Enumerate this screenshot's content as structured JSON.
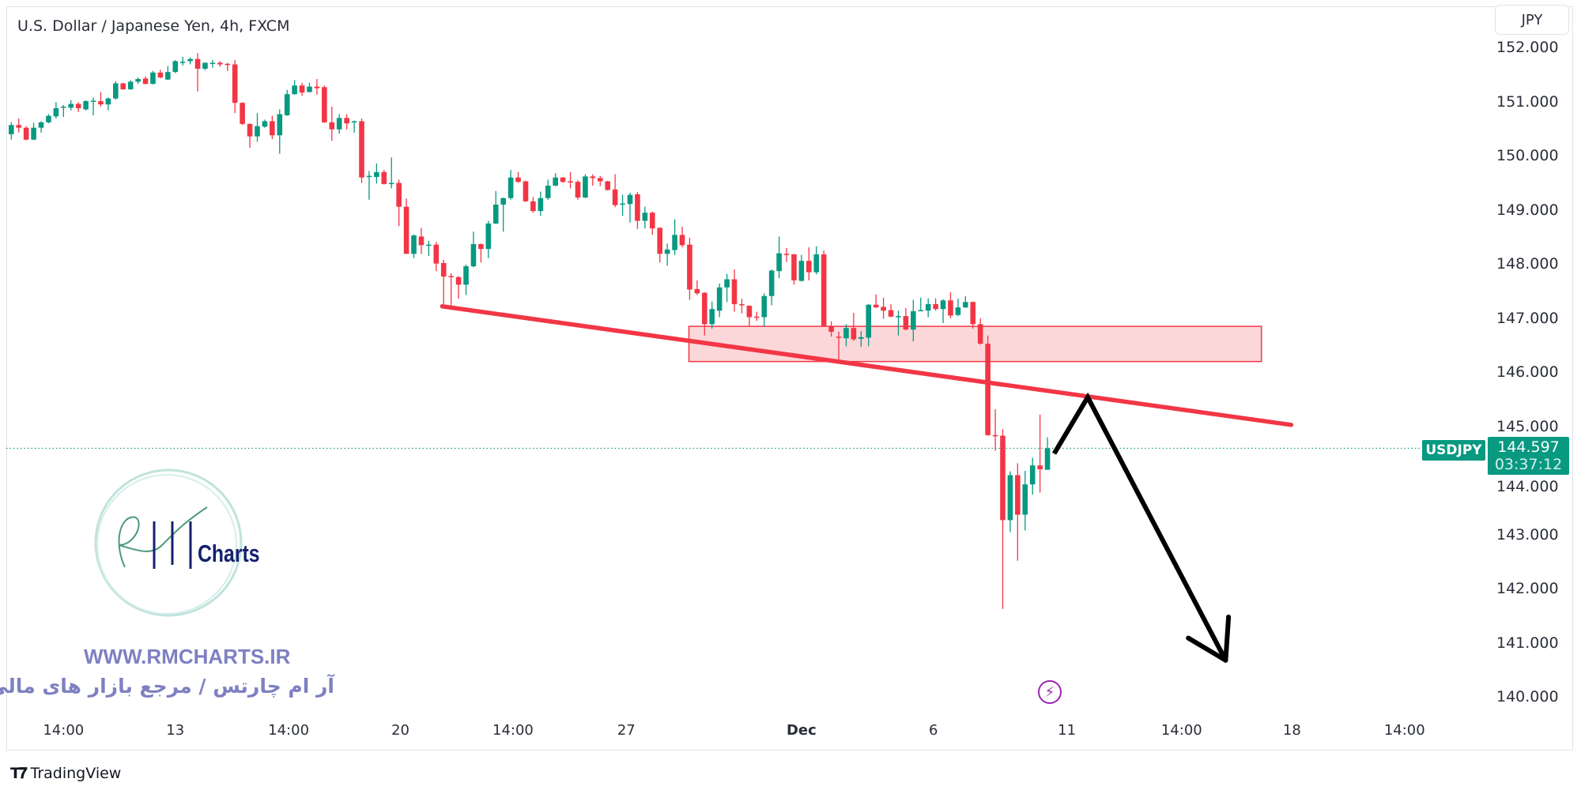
{
  "header": {
    "title": "U.S. Dollar / Japanese Yen, 4h, FXCM",
    "currency_button": "JPY"
  },
  "price_tag": {
    "symbol": "USDJPY",
    "price": "144.597",
    "countdown": "03:37:12"
  },
  "footer": {
    "brand": "TradingView"
  },
  "watermark": {
    "logo_text": "RM Charts",
    "logo_word": "Charts",
    "url": "WWW.RMCHARTS.IR",
    "tagline": "آر ام چارتس / مرجع بازار های مالی"
  },
  "icons": {
    "events": "lightning-icon",
    "brand": "tradingview-logo-icon"
  },
  "colors": {
    "up": "#089981",
    "down": "#f23645",
    "trendline": "#f23645",
    "zone_fill": "rgba(242,54,69,0.2)",
    "arrow": "#000000",
    "event": "#9c27b0"
  },
  "chart_data": {
    "type": "candlestick",
    "symbol": "USDJPY",
    "interval": "4h",
    "x_unit": "bar index",
    "ylim": [
      139.67,
      152.88
    ],
    "grid": false,
    "y_ticks": [
      "140.000",
      "141.000",
      "142.000",
      "143.000",
      "144.000",
      "145.000",
      "146.000",
      "147.000",
      "148.000",
      "149.000",
      "150.000",
      "151.000",
      "152.000"
    ],
    "x_ticks": [
      {
        "label": "14:00",
        "bar": 8
      },
      {
        "label": "13",
        "bar": 23
      },
      {
        "label": "14:00",
        "bar": 38.2
      },
      {
        "label": "20",
        "bar": 53.2
      },
      {
        "label": "14:00",
        "bar": 68.3
      },
      {
        "label": "27",
        "bar": 83.5
      },
      {
        "label": "Dec",
        "bar": 107,
        "bold": true
      },
      {
        "label": "6",
        "bar": 124.7
      },
      {
        "label": "11",
        "bar": 142.6
      },
      {
        "label": "14:00",
        "bar": 158
      },
      {
        "label": "18",
        "bar": 172.8
      },
      {
        "label": "14:00",
        "bar": 187.9
      }
    ],
    "ohlc": [
      [
        150.4,
        150.62,
        150.3,
        150.57
      ],
      [
        150.57,
        150.69,
        150.43,
        150.52
      ],
      [
        150.52,
        150.55,
        150.29,
        150.3
      ],
      [
        150.3,
        150.61,
        150.29,
        150.52
      ],
      [
        150.52,
        150.64,
        150.43,
        150.62
      ],
      [
        150.62,
        150.77,
        150.6,
        150.74
      ],
      [
        150.73,
        150.99,
        150.69,
        150.88
      ],
      [
        150.89,
        150.94,
        150.72,
        150.91
      ],
      [
        150.89,
        151.03,
        150.84,
        150.96
      ],
      [
        150.96,
        150.99,
        150.81,
        150.88
      ],
      [
        150.86,
        151.03,
        150.84,
        151.01
      ],
      [
        151.01,
        151.08,
        150.75,
        151.02
      ],
      [
        151.01,
        151.18,
        150.91,
        150.95
      ],
      [
        150.95,
        151.08,
        150.84,
        151.06
      ],
      [
        151.06,
        151.38,
        151.04,
        151.34
      ],
      [
        151.34,
        151.35,
        151.22,
        151.23
      ],
      [
        151.23,
        151.4,
        151.22,
        151.37
      ],
      [
        151.37,
        151.45,
        151.33,
        151.42
      ],
      [
        151.43,
        151.47,
        151.32,
        151.33
      ],
      [
        151.33,
        151.57,
        151.32,
        151.54
      ],
      [
        151.54,
        151.59,
        151.43,
        151.45
      ],
      [
        151.41,
        151.66,
        151.4,
        151.55
      ],
      [
        151.55,
        151.77,
        151.53,
        151.75
      ],
      [
        151.72,
        151.83,
        151.67,
        151.74
      ],
      [
        151.75,
        151.82,
        151.69,
        151.79
      ],
      [
        151.79,
        151.9,
        151.19,
        151.61
      ],
      [
        151.61,
        151.73,
        151.58,
        151.72
      ],
      [
        151.7,
        151.77,
        151.63,
        151.72
      ],
      [
        151.72,
        151.75,
        151.65,
        151.69
      ],
      [
        151.7,
        151.72,
        151.57,
        151.69
      ],
      [
        151.69,
        151.77,
        150.79,
        150.98
      ],
      [
        150.98,
        150.99,
        150.57,
        150.59
      ],
      [
        150.59,
        150.6,
        150.15,
        150.36
      ],
      [
        150.36,
        150.79,
        150.26,
        150.55
      ],
      [
        150.54,
        150.67,
        150.52,
        150.64
      ],
      [
        150.64,
        150.74,
        150.31,
        150.38
      ],
      [
        150.38,
        150.86,
        150.04,
        150.77
      ],
      [
        150.75,
        151.22,
        150.74,
        151.14
      ],
      [
        151.14,
        151.4,
        151.13,
        151.3
      ],
      [
        151.3,
        151.35,
        151.11,
        151.17
      ],
      [
        151.18,
        151.35,
        151.17,
        151.28
      ],
      [
        151.28,
        151.42,
        151.13,
        151.25
      ],
      [
        151.27,
        151.3,
        150.61,
        150.62
      ],
      [
        150.62,
        150.91,
        150.28,
        150.49
      ],
      [
        150.49,
        150.77,
        150.41,
        150.7
      ],
      [
        150.7,
        150.77,
        150.49,
        150.6
      ],
      [
        150.62,
        150.65,
        150.43,
        150.64
      ],
      [
        150.64,
        150.69,
        149.5,
        149.6
      ],
      [
        149.61,
        149.72,
        149.19,
        149.63
      ],
      [
        149.61,
        149.86,
        149.49,
        149.7
      ],
      [
        149.7,
        149.74,
        149.47,
        149.48
      ],
      [
        149.49,
        149.97,
        149.4,
        149.5
      ],
      [
        149.5,
        149.56,
        148.7,
        149.06
      ],
      [
        149.06,
        149.21,
        148.19,
        148.19
      ],
      [
        148.19,
        148.55,
        148.11,
        148.53
      ],
      [
        148.51,
        148.67,
        148.19,
        148.35
      ],
      [
        148.35,
        148.43,
        148.15,
        148.36
      ],
      [
        148.36,
        148.41,
        147.87,
        148.01
      ],
      [
        148.02,
        148.08,
        147.26,
        147.77
      ],
      [
        147.78,
        147.83,
        147.24,
        147.77
      ],
      [
        147.76,
        147.78,
        147.36,
        147.62
      ],
      [
        147.62,
        147.99,
        147.43,
        147.96
      ],
      [
        147.96,
        148.6,
        147.94,
        148.37
      ],
      [
        148.37,
        148.38,
        148.03,
        148.28
      ],
      [
        148.28,
        148.8,
        148.11,
        148.75
      ],
      [
        148.75,
        149.35,
        148.74,
        149.1
      ],
      [
        149.1,
        149.23,
        148.6,
        149.22
      ],
      [
        149.22,
        149.74,
        149.19,
        149.6
      ],
      [
        149.6,
        149.7,
        149.5,
        149.52
      ],
      [
        149.53,
        149.54,
        149.15,
        149.16
      ],
      [
        149.16,
        149.24,
        148.95,
        148.98
      ],
      [
        148.98,
        149.34,
        148.89,
        149.22
      ],
      [
        149.22,
        149.56,
        149.19,
        149.45
      ],
      [
        149.45,
        149.68,
        149.44,
        149.6
      ],
      [
        149.6,
        149.61,
        149.5,
        149.52
      ],
      [
        149.53,
        149.7,
        149.4,
        149.52
      ],
      [
        149.52,
        149.55,
        149.19,
        149.23
      ],
      [
        149.23,
        149.66,
        149.22,
        149.62
      ],
      [
        149.62,
        149.66,
        149.45,
        149.59
      ],
      [
        149.59,
        149.63,
        149.44,
        149.53
      ],
      [
        149.53,
        149.54,
        149.36,
        149.37
      ],
      [
        149.38,
        149.66,
        149.05,
        149.09
      ],
      [
        149.11,
        149.28,
        148.89,
        149.12
      ],
      [
        149.11,
        149.32,
        148.77,
        149.28
      ],
      [
        149.29,
        149.33,
        148.65,
        148.8
      ],
      [
        148.8,
        149.06,
        148.66,
        148.95
      ],
      [
        148.95,
        148.97,
        148.54,
        148.66
      ],
      [
        148.67,
        148.68,
        148.03,
        148.19
      ],
      [
        148.19,
        148.38,
        147.97,
        148.27
      ],
      [
        148.26,
        148.83,
        148.17,
        148.54
      ],
      [
        148.54,
        148.69,
        148.31,
        148.35
      ],
      [
        148.36,
        148.49,
        147.34,
        147.53
      ],
      [
        147.54,
        147.7,
        147.43,
        147.46
      ],
      [
        147.47,
        147.48,
        146.68,
        146.89
      ],
      [
        146.89,
        147.31,
        146.81,
        147.17
      ],
      [
        147.14,
        147.64,
        147.02,
        147.57
      ],
      [
        147.57,
        147.82,
        147.3,
        147.72
      ],
      [
        147.72,
        147.9,
        147.12,
        147.26
      ],
      [
        147.26,
        147.36,
        147.09,
        147.24
      ],
      [
        147.23,
        147.24,
        146.85,
        147.02
      ],
      [
        147.03,
        147.12,
        146.95,
        147.02
      ],
      [
        147.02,
        147.46,
        146.85,
        147.41
      ],
      [
        147.41,
        147.9,
        147.24,
        147.88
      ],
      [
        147.87,
        148.51,
        147.74,
        148.2
      ],
      [
        148.19,
        148.3,
        148.04,
        148.18
      ],
      [
        148.18,
        148.19,
        147.62,
        147.7
      ],
      [
        147.69,
        148.17,
        147.68,
        148.06
      ],
      [
        148.06,
        148.31,
        147.7,
        147.85
      ],
      [
        147.85,
        148.33,
        147.81,
        148.18
      ],
      [
        148.18,
        148.25,
        146.85,
        146.86
      ],
      [
        146.85,
        146.94,
        146.66,
        146.75
      ],
      [
        146.66,
        146.75,
        146.24,
        146.65
      ],
      [
        146.63,
        146.89,
        146.48,
        146.82
      ],
      [
        146.82,
        147.1,
        146.58,
        146.61
      ],
      [
        146.62,
        146.76,
        146.47,
        146.65
      ],
      [
        146.64,
        147.26,
        146.48,
        147.25
      ],
      [
        147.25,
        147.44,
        147.19,
        147.2
      ],
      [
        147.21,
        147.38,
        146.99,
        147.14
      ],
      [
        147.15,
        147.26,
        147.02,
        147.03
      ],
      [
        147.03,
        147.14,
        146.68,
        147.04
      ],
      [
        147.04,
        147.19,
        146.78,
        146.79
      ],
      [
        146.79,
        147.34,
        146.57,
        147.13
      ],
      [
        147.14,
        147.38,
        147.13,
        147.15
      ],
      [
        147.14,
        147.37,
        147.02,
        147.26
      ],
      [
        147.26,
        147.37,
        147.14,
        147.17
      ],
      [
        147.17,
        147.35,
        146.91,
        147.33
      ],
      [
        147.33,
        147.48,
        147.0,
        147.05
      ],
      [
        147.06,
        147.36,
        147.04,
        147.2
      ],
      [
        147.2,
        147.41,
        147.19,
        147.3
      ],
      [
        147.3,
        147.31,
        146.81,
        146.89
      ],
      [
        146.89,
        147.0,
        146.51,
        146.53
      ],
      [
        146.53,
        146.68,
        144.83,
        144.84
      ],
      [
        144.84,
        145.32,
        144.55,
        144.83
      ],
      [
        144.83,
        144.95,
        141.63,
        143.27
      ],
      [
        143.27,
        144.17,
        143.05,
        144.1
      ],
      [
        144.1,
        144.32,
        142.52,
        143.37
      ],
      [
        143.37,
        144.18,
        143.08,
        143.93
      ],
      [
        143.93,
        144.42,
        143.74,
        144.28
      ],
      [
        144.28,
        145.22,
        143.78,
        144.21
      ],
      [
        144.2,
        144.8,
        144.2,
        144.597
      ]
    ],
    "last_price": 144.597,
    "drawings": {
      "trendline": {
        "from": {
          "bar": 58.8,
          "price": 147.22
        },
        "to": {
          "bar": 172.7,
          "price": 145.03
        }
      },
      "zone": {
        "from_bar": 91.9,
        "to_bar": 168.7,
        "top": 146.85,
        "bottom": 146.2
      },
      "projection_arrow": [
        {
          "bar": 140.9,
          "price": 144.5
        },
        {
          "bar": 145.4,
          "price": 145.54
        },
        {
          "bar": 163.9,
          "price": 140.68
        }
      ]
    }
  }
}
